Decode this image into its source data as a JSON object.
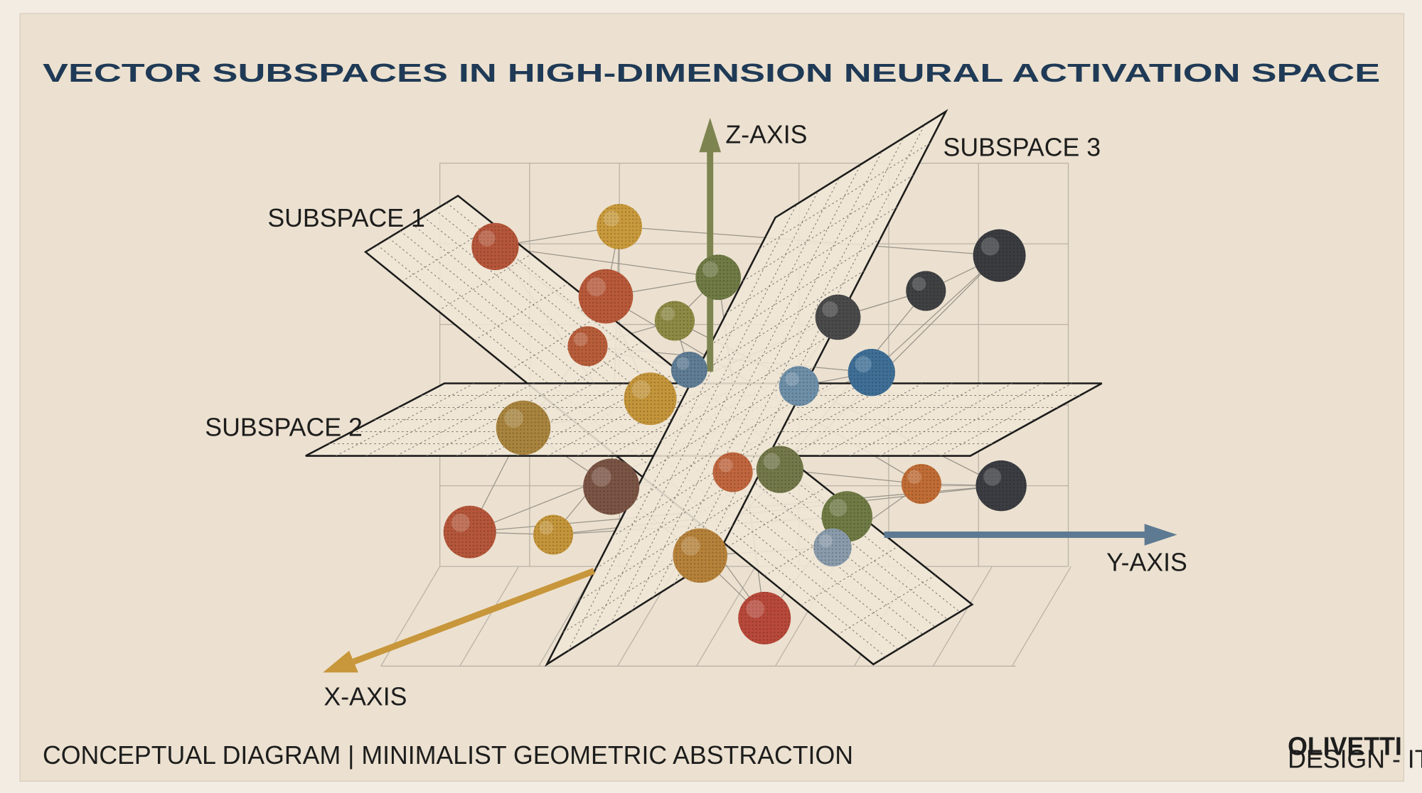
{
  "header": {
    "title": "VECTOR SUBSPACES IN HIGH-DIMENSION NEURAL ACTIVATION SPACE"
  },
  "axes": {
    "z": "Z-AXIS",
    "y": "Y-AXIS",
    "x": "X-AXIS"
  },
  "subspaces": [
    {
      "label": "SUBSPACE 1"
    },
    {
      "label": "SUBSPACE 2"
    },
    {
      "label": "SUBSPACE 3"
    }
  ],
  "footer": {
    "caption": "CONCEPTUAL DIAGRAM | MINIMALIST GEOMETRIC ABSTRACTION",
    "logo": {
      "name": "OLIVETTI",
      "tagline": "DESIGN - ITALY"
    }
  }
}
